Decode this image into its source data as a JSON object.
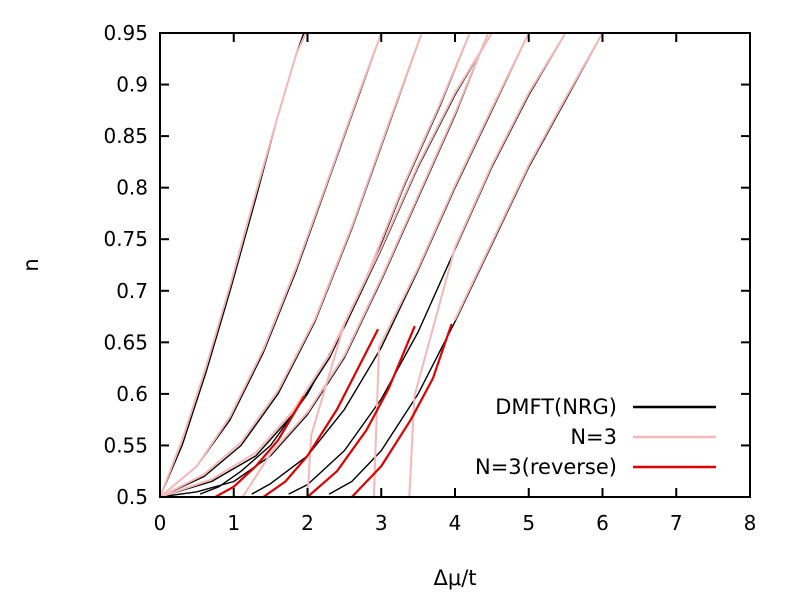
{
  "chart_data": {
    "type": "line",
    "xlabel": "Δμ/t",
    "ylabel": "n",
    "xlim": [
      0,
      8
    ],
    "ylim": [
      0.5,
      0.95
    ],
    "xticks": [
      {
        "v": 0,
        "label": "0"
      },
      {
        "v": 1,
        "label": "1"
      },
      {
        "v": 2,
        "label": "2"
      },
      {
        "v": 3,
        "label": "3"
      },
      {
        "v": 4,
        "label": "4"
      },
      {
        "v": 5,
        "label": "5"
      },
      {
        "v": 6,
        "label": "6"
      },
      {
        "v": 7,
        "label": "7"
      },
      {
        "v": 8,
        "label": "8"
      }
    ],
    "yticks": [
      {
        "v": 0.5,
        "label": "0.5"
      },
      {
        "v": 0.55,
        "label": "0.55"
      },
      {
        "v": 0.6,
        "label": "0.6"
      },
      {
        "v": 0.65,
        "label": "0.65"
      },
      {
        "v": 0.7,
        "label": "0.7"
      },
      {
        "v": 0.75,
        "label": "0.75"
      },
      {
        "v": 0.8,
        "label": "0.8"
      },
      {
        "v": 0.85,
        "label": "0.85"
      },
      {
        "v": 0.9,
        "label": "0.9"
      },
      {
        "v": 0.95,
        "label": "0.95"
      }
    ],
    "grid": false,
    "legend_position": "bottom-right",
    "legend": [
      {
        "label": "DMFT(NRG)",
        "color": "#000000"
      },
      {
        "label": "N=3",
        "color": "#f4b8b8"
      },
      {
        "label": "N=3(reverse)",
        "color": "#e00000"
      }
    ],
    "series": [
      {
        "group": "DMFT(NRG)",
        "color": "#000000",
        "points": [
          [
            0,
            0.5
          ],
          [
            0.3,
            0.55
          ],
          [
            0.62,
            0.62
          ],
          [
            0.95,
            0.7
          ],
          [
            1.3,
            0.79
          ],
          [
            1.6,
            0.87
          ],
          [
            1.85,
            0.93
          ],
          [
            1.95,
            0.95
          ]
        ]
      },
      {
        "group": "DMFT(NRG)",
        "color": "#000000",
        "points": [
          [
            0,
            0.5
          ],
          [
            0.5,
            0.53
          ],
          [
            0.95,
            0.575
          ],
          [
            1.4,
            0.64
          ],
          [
            1.85,
            0.72
          ],
          [
            2.3,
            0.81
          ],
          [
            2.7,
            0.89
          ],
          [
            3.0,
            0.95
          ]
        ]
      },
      {
        "group": "DMFT(NRG)",
        "color": "#000000",
        "points": [
          [
            0,
            0.5
          ],
          [
            0.6,
            0.52
          ],
          [
            1.1,
            0.55
          ],
          [
            1.6,
            0.6
          ],
          [
            2.1,
            0.67
          ],
          [
            2.6,
            0.76
          ],
          [
            3.1,
            0.86
          ],
          [
            3.55,
            0.95
          ]
        ]
      },
      {
        "group": "DMFT(NRG)",
        "color": "#000000",
        "points": [
          [
            0,
            0.5
          ],
          [
            0.7,
            0.515
          ],
          [
            1.3,
            0.54
          ],
          [
            1.8,
            0.58
          ],
          [
            2.3,
            0.635
          ],
          [
            2.8,
            0.71
          ],
          [
            3.3,
            0.8
          ],
          [
            3.8,
            0.88
          ],
          [
            4.2,
            0.95
          ]
        ]
      },
      {
        "group": "DMFT(NRG)",
        "color": "#000000",
        "points": [
          [
            0,
            0.5
          ],
          [
            0.5,
            0.505
          ],
          [
            1.0,
            0.515
          ],
          [
            1.5,
            0.54
          ],
          [
            2.0,
            0.58
          ],
          [
            2.5,
            0.635
          ],
          [
            3.0,
            0.71
          ],
          [
            3.5,
            0.79
          ],
          [
            4.0,
            0.87
          ],
          [
            4.45,
            0.95
          ]
        ]
      },
      {
        "group": "DMFT(NRG)",
        "color": "#000000",
        "points": [
          [
            0.55,
            0.503
          ],
          [
            0.8,
            0.51
          ],
          [
            1.1,
            0.525
          ],
          [
            1.5,
            0.55
          ],
          [
            2.0,
            0.6
          ],
          [
            2.5,
            0.665
          ],
          [
            3.0,
            0.74
          ],
          [
            3.5,
            0.82
          ],
          [
            4.0,
            0.89
          ],
          [
            4.5,
            0.95
          ]
        ]
      },
      {
        "group": "DMFT(NRG)",
        "color": "#000000",
        "points": [
          [
            1.25,
            0.503
          ],
          [
            1.5,
            0.513
          ],
          [
            2.0,
            0.54
          ],
          [
            2.5,
            0.585
          ],
          [
            3.0,
            0.645
          ],
          [
            3.5,
            0.72
          ],
          [
            4.0,
            0.8
          ],
          [
            4.5,
            0.875
          ],
          [
            5.0,
            0.95
          ]
        ]
      },
      {
        "group": "DMFT(NRG)",
        "color": "#000000",
        "points": [
          [
            1.75,
            0.503
          ],
          [
            2.0,
            0.512
          ],
          [
            2.5,
            0.545
          ],
          [
            3.0,
            0.595
          ],
          [
            3.5,
            0.66
          ],
          [
            4.0,
            0.74
          ],
          [
            4.5,
            0.82
          ],
          [
            5.0,
            0.89
          ],
          [
            5.5,
            0.95
          ]
        ]
      },
      {
        "group": "DMFT(NRG)",
        "color": "#000000",
        "points": [
          [
            2.3,
            0.503
          ],
          [
            2.6,
            0.515
          ],
          [
            3.0,
            0.545
          ],
          [
            3.5,
            0.6
          ],
          [
            4.0,
            0.67
          ],
          [
            4.5,
            0.745
          ],
          [
            5.0,
            0.82
          ],
          [
            5.5,
            0.885
          ],
          [
            6.0,
            0.95
          ]
        ]
      },
      {
        "group": "N=3",
        "color": "#f4b8b8",
        "points": [
          [
            0,
            0.5
          ],
          [
            0.3,
            0.555
          ],
          [
            0.62,
            0.625
          ],
          [
            0.95,
            0.705
          ],
          [
            1.3,
            0.795
          ],
          [
            1.6,
            0.87
          ],
          [
            1.85,
            0.93
          ],
          [
            1.98,
            0.95
          ]
        ]
      },
      {
        "group": "N=3",
        "color": "#f4b8b8",
        "points": [
          [
            0,
            0.5
          ],
          [
            0.5,
            0.53
          ],
          [
            0.95,
            0.578
          ],
          [
            1.4,
            0.643
          ],
          [
            1.85,
            0.723
          ],
          [
            2.3,
            0.812
          ],
          [
            2.7,
            0.892
          ],
          [
            3.0,
            0.95
          ]
        ]
      },
      {
        "group": "N=3",
        "color": "#f4b8b8",
        "points": [
          [
            0,
            0.5
          ],
          [
            0.6,
            0.522
          ],
          [
            1.1,
            0.553
          ],
          [
            1.6,
            0.603
          ],
          [
            2.1,
            0.672
          ],
          [
            2.6,
            0.762
          ],
          [
            3.1,
            0.862
          ],
          [
            3.55,
            0.95
          ]
        ]
      },
      {
        "group": "N=3",
        "color": "#f4b8b8",
        "points": [
          [
            0,
            0.5
          ],
          [
            0.7,
            0.517
          ],
          [
            1.3,
            0.543
          ],
          [
            1.8,
            0.583
          ],
          [
            2.3,
            0.638
          ],
          [
            2.8,
            0.713
          ],
          [
            3.3,
            0.802
          ],
          [
            3.8,
            0.882
          ],
          [
            4.2,
            0.95
          ]
        ]
      },
      {
        "group": "N=3",
        "color": "#f4b8b8",
        "points": [
          [
            1.12,
            0.5
          ],
          [
            1.5,
            0.542
          ],
          [
            2.0,
            0.582
          ],
          [
            2.5,
            0.637
          ],
          [
            3.0,
            0.712
          ],
          [
            3.5,
            0.792
          ],
          [
            4.0,
            0.872
          ],
          [
            4.45,
            0.95
          ]
        ]
      },
      {
        "group": "N=3",
        "color": "#f4b8b8",
        "points": [
          [
            2.0,
            0.5
          ],
          [
            2.05,
            0.56
          ],
          [
            2.5,
            0.668
          ],
          [
            3.0,
            0.742
          ],
          [
            3.5,
            0.822
          ],
          [
            4.0,
            0.892
          ],
          [
            4.5,
            0.95
          ]
        ]
      },
      {
        "group": "N=3",
        "color": "#f4b8b8",
        "points": [
          [
            2.9,
            0.5
          ],
          [
            2.97,
            0.645
          ],
          [
            3.5,
            0.722
          ],
          [
            4.0,
            0.802
          ],
          [
            4.5,
            0.877
          ],
          [
            5.0,
            0.95
          ]
        ]
      },
      {
        "group": "N=3",
        "color": "#f4b8b8",
        "points": [
          [
            3.38,
            0.5
          ],
          [
            3.45,
            0.598
          ],
          [
            4.0,
            0.742
          ],
          [
            4.5,
            0.822
          ],
          [
            5.0,
            0.892
          ],
          [
            5.5,
            0.95
          ]
        ]
      },
      {
        "group": "N=3",
        "color": "#f4b8b8",
        "points": [
          [
            4.0,
            0.672
          ],
          [
            4.5,
            0.747
          ],
          [
            5.0,
            0.822
          ],
          [
            5.5,
            0.887
          ],
          [
            6.0,
            0.95
          ]
        ]
      },
      {
        "group": "N=3(reverse)",
        "color": "#e00000",
        "points": [
          [
            0.75,
            0.5
          ],
          [
            1.0,
            0.51
          ],
          [
            1.3,
            0.53
          ],
          [
            1.6,
            0.555
          ],
          [
            1.95,
            0.597
          ]
        ]
      },
      {
        "group": "N=3(reverse)",
        "color": "#e00000",
        "points": [
          [
            1.4,
            0.5
          ],
          [
            1.7,
            0.515
          ],
          [
            2.0,
            0.54
          ],
          [
            2.4,
            0.585
          ],
          [
            2.95,
            0.662
          ]
        ]
      },
      {
        "group": "N=3(reverse)",
        "color": "#e00000",
        "points": [
          [
            2.0,
            0.5
          ],
          [
            2.4,
            0.525
          ],
          [
            2.8,
            0.565
          ],
          [
            3.1,
            0.605
          ],
          [
            3.45,
            0.665
          ]
        ]
      },
      {
        "group": "N=3(reverse)",
        "color": "#e00000",
        "points": [
          [
            2.6,
            0.5
          ],
          [
            3.0,
            0.53
          ],
          [
            3.4,
            0.575
          ],
          [
            3.7,
            0.615
          ],
          [
            3.95,
            0.667
          ]
        ]
      }
    ]
  }
}
